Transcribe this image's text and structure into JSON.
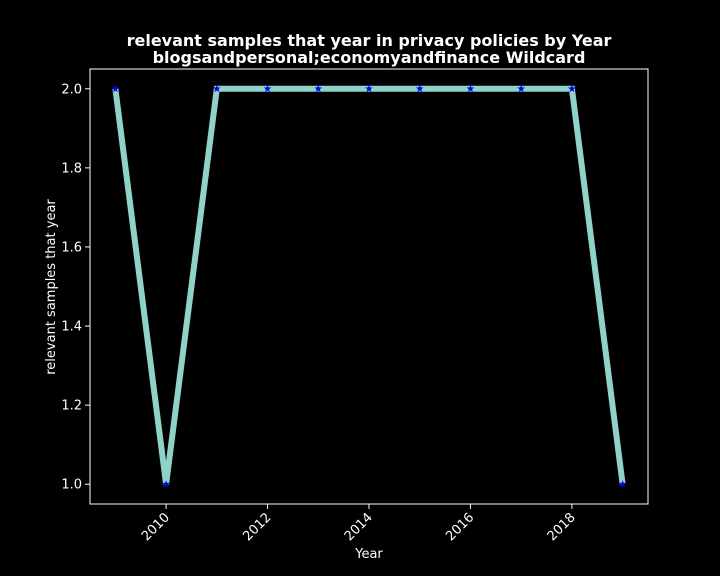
{
  "chart_data": {
    "type": "line",
    "title": "relevant samples that year in privacy policies by Year",
    "subtitle": "blogsandpersonal;economyandfinance Wildcard",
    "xlabel": "Year",
    "ylabel": "relevant samples that year",
    "x": [
      2009,
      2010,
      2011,
      2012,
      2013,
      2014,
      2015,
      2016,
      2017,
      2018,
      2019
    ],
    "series": [
      {
        "values": [
          2,
          1,
          2,
          2,
          2,
          2,
          2,
          2,
          2,
          2,
          1
        ],
        "line_color": "#8dd3c7",
        "marker_color": "#0000ff",
        "marker": "star"
      }
    ],
    "xlim": [
      2008.5,
      2019.5
    ],
    "ylim": [
      0.95,
      2.05
    ],
    "x_ticks": [
      "2010",
      "2012",
      "2014",
      "2016",
      "2018"
    ],
    "y_ticks": [
      "1.0",
      "1.2",
      "1.4",
      "1.6",
      "1.8",
      "2.0"
    ],
    "grid": false,
    "background": "#000000",
    "axis_color": "#ffffff"
  }
}
